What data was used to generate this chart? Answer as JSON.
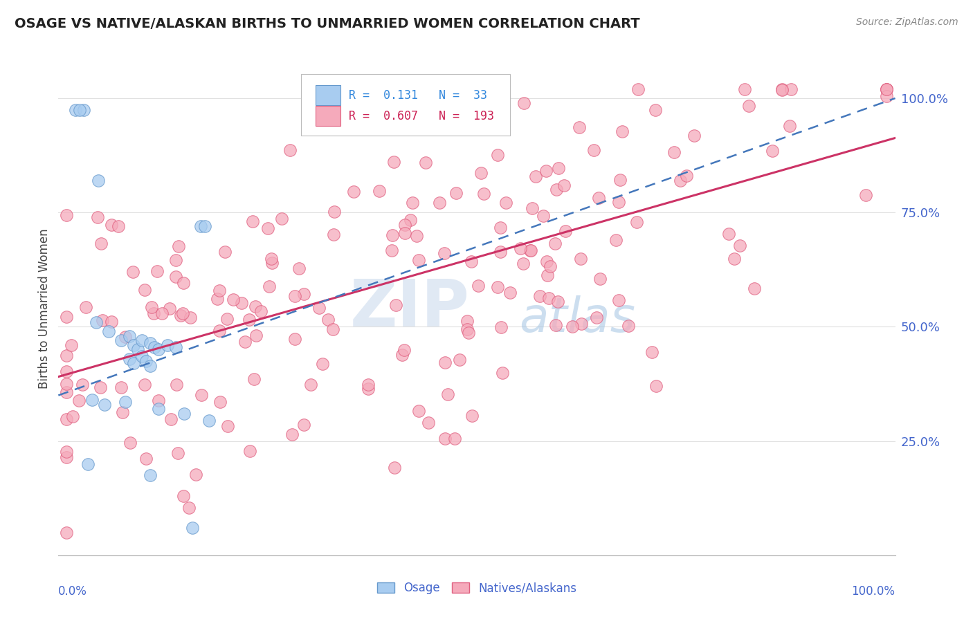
{
  "title": "OSAGE VS NATIVE/ALASKAN BIRTHS TO UNMARRIED WOMEN CORRELATION CHART",
  "source": "Source: ZipAtlas.com",
  "ylabel": "Births to Unmarried Women",
  "y_tick_labels": [
    "25.0%",
    "50.0%",
    "75.0%",
    "100.0%"
  ],
  "y_tick_values": [
    0.25,
    0.5,
    0.75,
    1.0
  ],
  "xlim": [
    0.0,
    1.0
  ],
  "ylim": [
    0.0,
    1.08
  ],
  "osage_color": "#A8CCF0",
  "osage_edge_color": "#6699CC",
  "native_color": "#F5AABB",
  "native_edge_color": "#E06080",
  "osage_R": 0.131,
  "osage_N": 33,
  "native_R": 0.607,
  "native_N": 193,
  "watermark_zip": "ZIP",
  "watermark_atlas": "atlas",
  "background_color": "#FFFFFF",
  "grid_color": "#E0E0E0",
  "axis_label_color": "#4466CC",
  "title_color": "#222222",
  "legend_R_color_osage": "#3388DD",
  "legend_R_color_native": "#CC2255",
  "osage_line_color": "#4477BB",
  "native_line_color": "#CC3366",
  "marker_size": 160
}
